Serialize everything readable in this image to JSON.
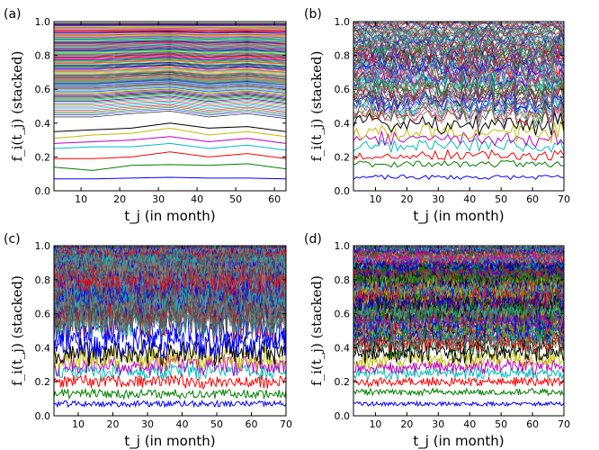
{
  "chart_data": [
    {
      "panel": "(a)",
      "type": "line",
      "stacked": true,
      "ylabel": "f_i(t_j) (stacked)",
      "xlabel": "t_j (in month)",
      "xlim": [
        3,
        63
      ],
      "ylim": [
        0.0,
        1.0
      ],
      "xticks": [
        "10",
        "20",
        "30",
        "40",
        "50",
        "60"
      ],
      "yticks": [
        "0.0",
        "0.2",
        "0.4",
        "0.6",
        "0.8",
        "1.0"
      ],
      "x": [
        3,
        13,
        23,
        33,
        43,
        53,
        63
      ],
      "bottom_series": [
        {
          "name": "",
          "color": "#0000ff",
          "values": [
            0.07,
            0.07,
            0.075,
            0.08,
            0.075,
            0.075,
            0.07
          ]
        },
        {
          "name": "",
          "color": "#008000",
          "values": [
            0.14,
            0.12,
            0.15,
            0.155,
            0.15,
            0.16,
            0.13
          ]
        },
        {
          "name": "",
          "color": "#ff0000",
          "values": [
            0.19,
            0.19,
            0.2,
            0.23,
            0.2,
            0.22,
            0.19
          ]
        },
        {
          "name": "",
          "color": "#00bfbf",
          "values": [
            0.25,
            0.26,
            0.26,
            0.28,
            0.25,
            0.27,
            0.24
          ]
        },
        {
          "name": "",
          "color": "#bf00bf",
          "values": [
            0.28,
            0.29,
            0.3,
            0.32,
            0.29,
            0.31,
            0.28
          ]
        },
        {
          "name": "",
          "color": "#bfbf00",
          "values": [
            0.31,
            0.33,
            0.34,
            0.37,
            0.33,
            0.35,
            0.32
          ]
        },
        {
          "name": "",
          "color": "#000000",
          "values": [
            0.35,
            0.36,
            0.37,
            0.4,
            0.37,
            0.38,
            0.35
          ]
        }
      ],
      "upper_band": {
        "count": 110,
        "top": 0.99,
        "shape": [
          0.0,
          0.0,
          0.02,
          0.035,
          0.0,
          0.02,
          -0.01
        ]
      },
      "palette": [
        "#0000ff",
        "#008000",
        "#ff0000",
        "#00bfbf",
        "#bf00bf",
        "#bfbf00",
        "#000000",
        "#555555",
        "#777777"
      ],
      "noise": 0.0,
      "seed": 11
    },
    {
      "panel": "(b)",
      "type": "line",
      "stacked": true,
      "ylabel": "f_i(t_j) (stacked)",
      "xlabel": "t_j (in month)",
      "xlim": [
        3,
        70
      ],
      "ylim": [
        0.0,
        1.0
      ],
      "xticks": [
        "10",
        "20",
        "30",
        "40",
        "50",
        "60",
        "70"
      ],
      "yticks": [
        "0.0",
        "0.2",
        "0.4",
        "0.6",
        "0.8",
        "1.0"
      ],
      "npoints": 68,
      "bottom_series": [
        {
          "name": "",
          "color": "#0000ff",
          "level": 0.08
        },
        {
          "name": "",
          "color": "#008000",
          "level": 0.16
        },
        {
          "name": "",
          "color": "#ff0000",
          "level": 0.21
        },
        {
          "name": "",
          "color": "#00bfbf",
          "level": 0.27
        },
        {
          "name": "",
          "color": "#bf00bf",
          "level": 0.31
        },
        {
          "name": "",
          "color": "#bfbf00",
          "level": 0.35
        },
        {
          "name": "",
          "color": "#000000",
          "level": 0.4
        }
      ],
      "upper_band": {
        "count": 100,
        "top": 0.99
      },
      "palette": [
        "#555555",
        "#666666",
        "#777777",
        "#888888",
        "#0000ff",
        "#ff0000",
        "#008000",
        "#00bfbf",
        "#bf00bf",
        "#333333"
      ],
      "noise": 0.022,
      "seed": 23
    },
    {
      "panel": "(c)",
      "type": "line",
      "stacked": true,
      "ylabel": "f_i(t_j) (stacked)",
      "xlabel": "t_j (in month)",
      "xlim": [
        3,
        70
      ],
      "ylim": [
        0.0,
        1.0
      ],
      "xticks": [
        "10",
        "20",
        "30",
        "40",
        "50",
        "60",
        "70"
      ],
      "yticks": [
        "0.0",
        "0.2",
        "0.4",
        "0.6",
        "0.8",
        "1.0"
      ],
      "npoints": 200,
      "bottom_series": [
        {
          "name": "",
          "color": "#0000ff",
          "level": 0.07
        },
        {
          "name": "",
          "color": "#008000",
          "level": 0.13
        },
        {
          "name": "",
          "color": "#ff0000",
          "level": 0.2
        },
        {
          "name": "",
          "color": "#00bfbf",
          "level": 0.26
        },
        {
          "name": "",
          "color": "#bf00bf",
          "level": 0.3
        },
        {
          "name": "",
          "color": "#bfbf00",
          "level": 0.34
        },
        {
          "name": "",
          "color": "#000000",
          "level": 0.38
        },
        {
          "name": "",
          "color": "#0000ff",
          "level": 0.42
        },
        {
          "name": "",
          "color": "#0000ff",
          "level": 0.5
        }
      ],
      "upper_band": {
        "count": 140,
        "top": 0.99
      },
      "palette": [
        "#444444",
        "#555555",
        "#666666",
        "#777777",
        "#888888",
        "#0000ff",
        "#ff0000",
        "#00bfbf"
      ],
      "noise": 0.03,
      "seed": 37
    },
    {
      "panel": "(d)",
      "type": "line",
      "stacked": true,
      "ylabel": "f_i(t_j) (stacked)",
      "xlabel": "t_j (in month)",
      "xlim": [
        3,
        70
      ],
      "ylim": [
        0.0,
        1.0
      ],
      "xticks": [
        "10",
        "20",
        "30",
        "40",
        "50",
        "60",
        "70"
      ],
      "yticks": [
        "0.0",
        "0.2",
        "0.4",
        "0.6",
        "0.8",
        "1.0"
      ],
      "npoints": 200,
      "bottom_series": [
        {
          "name": "",
          "color": "#0000ff",
          "level": 0.07
        },
        {
          "name": "",
          "color": "#008000",
          "level": 0.14
        },
        {
          "name": "",
          "color": "#ff0000",
          "level": 0.2
        },
        {
          "name": "",
          "color": "#00bfbf",
          "level": 0.25
        },
        {
          "name": "",
          "color": "#bf00bf",
          "level": 0.29
        },
        {
          "name": "",
          "color": "#bfbf00",
          "level": 0.33
        },
        {
          "name": "",
          "color": "#000000",
          "level": 0.37
        }
      ],
      "upper_band": {
        "count": 140,
        "top": 0.99
      },
      "palette": [
        "#0000ff",
        "#008000",
        "#ff0000",
        "#00bfbf",
        "#bf00bf",
        "#bfbf00",
        "#000000",
        "#666666"
      ],
      "noise": 0.02,
      "seed": 53
    }
  ]
}
